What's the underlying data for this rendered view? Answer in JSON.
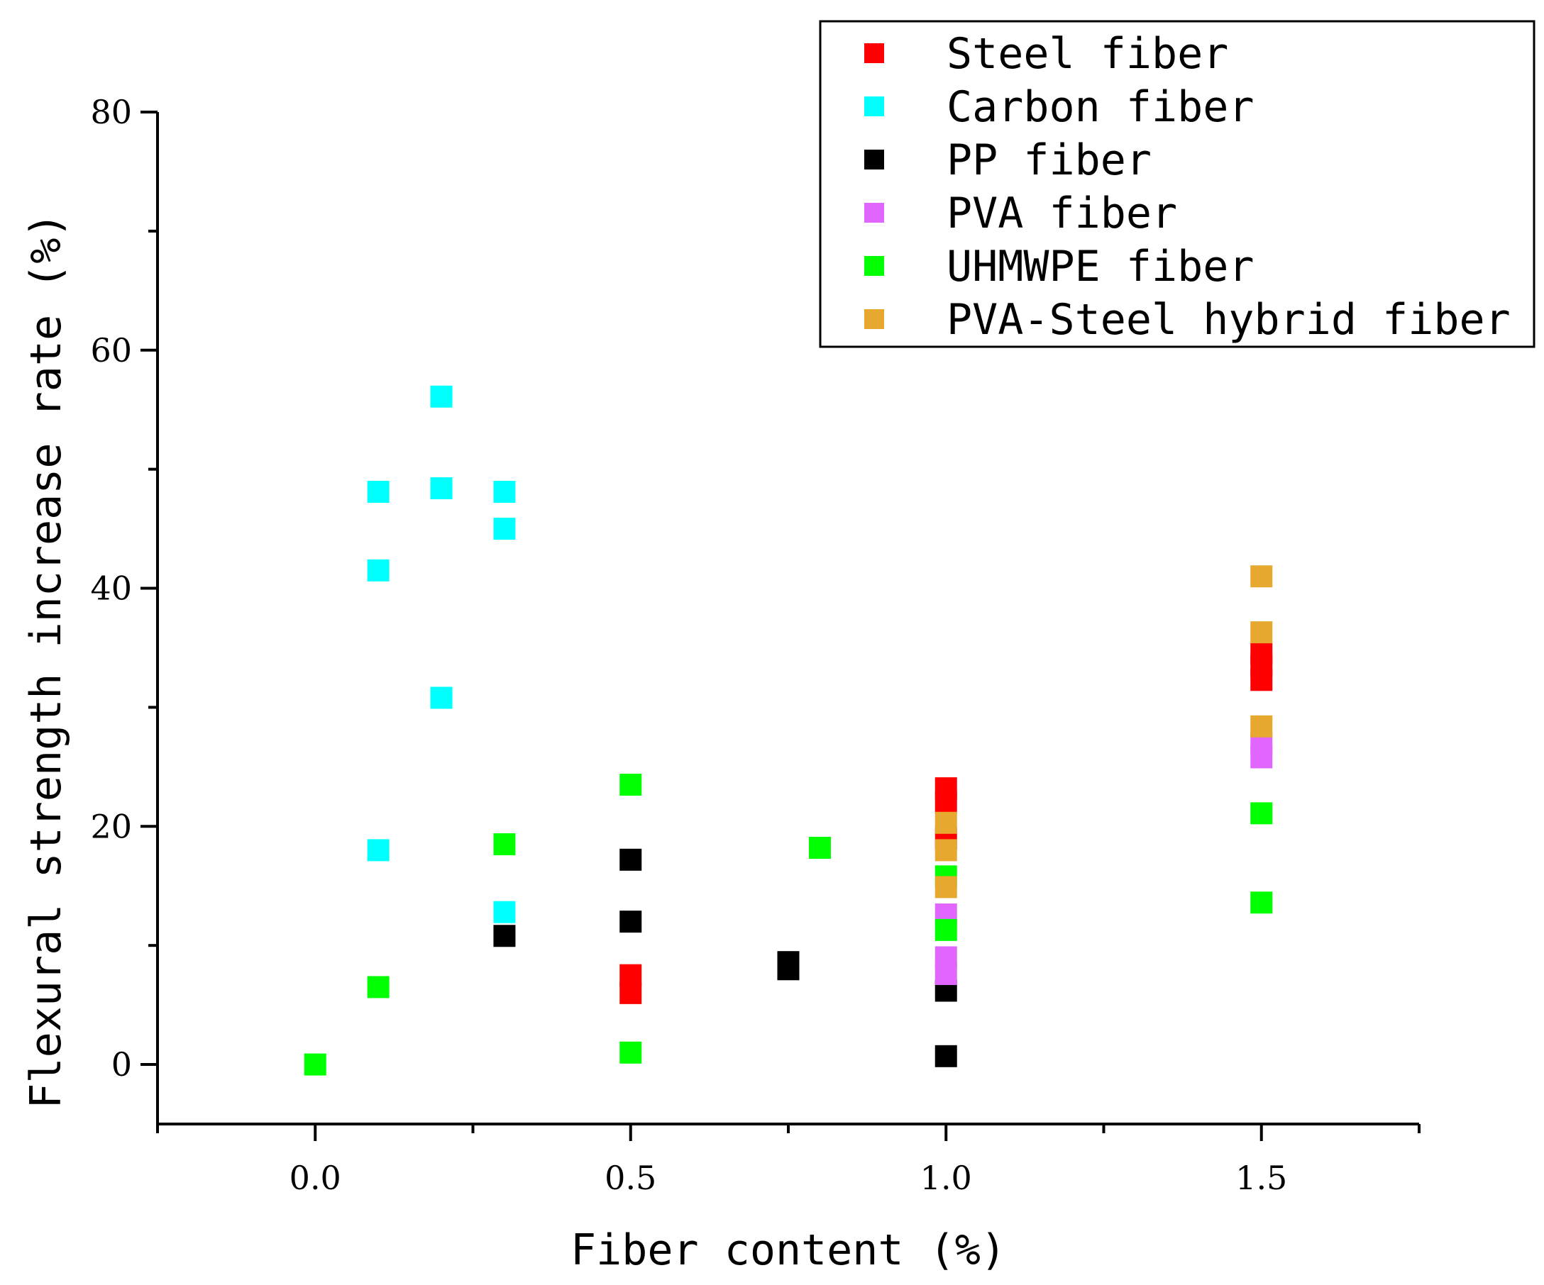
{
  "chart_data": {
    "type": "scatter",
    "title": "",
    "xlabel": "Fiber content (%)",
    "ylabel": "Flexural strength increase rate (%)",
    "xlim": [
      -0.25,
      1.75
    ],
    "ylim": [
      -5,
      80
    ],
    "x_ticks": [
      0.0,
      0.5,
      1.0,
      1.5
    ],
    "x_tick_labels": [
      "0.0",
      "0.5",
      "1.0",
      "1.5"
    ],
    "y_ticks": [
      0,
      20,
      40,
      60,
      80
    ],
    "y_tick_labels": [
      "0",
      "20",
      "40",
      "60",
      "80"
    ],
    "grid": false,
    "legend_position": "top-right",
    "series": [
      {
        "name": "Steel fiber",
        "color": "#ff0000",
        "points": [
          [
            0.5,
            6.0
          ],
          [
            0.5,
            7.5
          ],
          [
            1.0,
            22.0
          ],
          [
            1.0,
            23.2
          ],
          [
            1.0,
            19.0
          ],
          [
            1.5,
            34.5
          ],
          [
            1.5,
            32.3
          ],
          [
            1.5,
            33.5
          ]
        ]
      },
      {
        "name": "Carbon fiber",
        "color": "#00ffff",
        "points": [
          [
            0.1,
            48.1
          ],
          [
            0.1,
            41.5
          ],
          [
            0.1,
            18.0
          ],
          [
            0.2,
            56.1
          ],
          [
            0.2,
            48.4
          ],
          [
            0.2,
            30.8
          ],
          [
            0.3,
            48.1
          ],
          [
            0.3,
            45.0
          ],
          [
            0.3,
            12.8
          ]
        ]
      },
      {
        "name": "PP fiber",
        "color": "#000000",
        "points": [
          [
            0.3,
            10.8
          ],
          [
            0.5,
            17.2
          ],
          [
            0.5,
            12.0
          ],
          [
            0.75,
            8.6
          ],
          [
            0.75,
            8.0
          ],
          [
            1.0,
            6.2
          ],
          [
            1.0,
            0.7
          ]
        ]
      },
      {
        "name": "PVA fiber",
        "color": "#e066ff",
        "points": [
          [
            1.0,
            12.6
          ],
          [
            1.0,
            9.0
          ],
          [
            1.0,
            7.6
          ],
          [
            1.5,
            27.0
          ],
          [
            1.5,
            25.8
          ]
        ]
      },
      {
        "name": "UHMWPE fiber",
        "color": "#00ff00",
        "points": [
          [
            0.0,
            0.0
          ],
          [
            0.1,
            6.5
          ],
          [
            0.3,
            18.5
          ],
          [
            0.5,
            23.5
          ],
          [
            0.5,
            1.0
          ],
          [
            0.8,
            18.2
          ],
          [
            1.0,
            15.8
          ],
          [
            1.0,
            11.3
          ],
          [
            1.5,
            21.1
          ],
          [
            1.5,
            13.6
          ]
        ]
      },
      {
        "name": "PVA-Steel hybrid fiber",
        "color": "#e6a82e",
        "points": [
          [
            1.0,
            20.3
          ],
          [
            1.0,
            18.0
          ],
          [
            1.0,
            14.9
          ],
          [
            1.5,
            41.0
          ],
          [
            1.5,
            36.3
          ],
          [
            1.5,
            28.4
          ]
        ]
      }
    ]
  }
}
